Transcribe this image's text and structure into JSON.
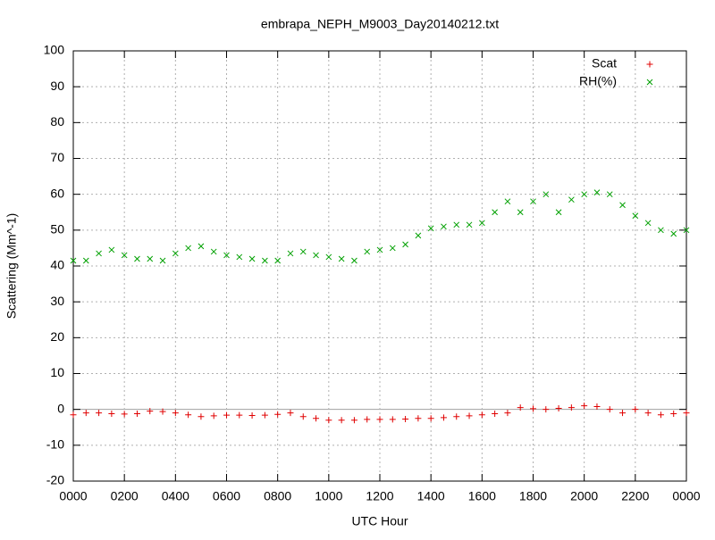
{
  "chart_data": {
    "type": "scatter",
    "title": "embrapa_NEPH_M9003_Day20140212.txt",
    "xlabel": "UTC Hour",
    "ylabel": "Scattering (Mm^-1)",
    "xlim": [
      0,
      24
    ],
    "ylim": [
      -20,
      100
    ],
    "xticks": [
      {
        "value": 0,
        "label": "0000"
      },
      {
        "value": 2,
        "label": "0200"
      },
      {
        "value": 4,
        "label": "0400"
      },
      {
        "value": 6,
        "label": "0600"
      },
      {
        "value": 8,
        "label": "0800"
      },
      {
        "value": 10,
        "label": "1000"
      },
      {
        "value": 12,
        "label": "1200"
      },
      {
        "value": 14,
        "label": "1400"
      },
      {
        "value": 16,
        "label": "1600"
      },
      {
        "value": 18,
        "label": "1800"
      },
      {
        "value": 20,
        "label": "2000"
      },
      {
        "value": 22,
        "label": "2200"
      },
      {
        "value": 24,
        "label": "0000"
      }
    ],
    "yticks": [
      -20,
      -10,
      0,
      10,
      20,
      30,
      40,
      50,
      60,
      70,
      80,
      90,
      100
    ],
    "grid": true,
    "legend": "upper right",
    "x": [
      0,
      0.5,
      1,
      1.5,
      2,
      2.5,
      3,
      3.5,
      4,
      4.5,
      5,
      5.5,
      6,
      6.5,
      7,
      7.5,
      8,
      8.5,
      9,
      9.5,
      10,
      10.5,
      11,
      11.5,
      12,
      12.5,
      13,
      13.5,
      14,
      14.5,
      15,
      15.5,
      16,
      16.5,
      17,
      17.5,
      18,
      18.5,
      19,
      19.5,
      20,
      20.5,
      21,
      21.5,
      22,
      22.5,
      23,
      23.5,
      24
    ],
    "series": [
      {
        "name": "Scat",
        "color": "#e00000",
        "marker": "plus",
        "values": [
          -1.5,
          -1,
          -1,
          -1.2,
          -1.3,
          -1.2,
          -0.5,
          -0.6,
          -1,
          -1.5,
          -2,
          -1.8,
          -1.6,
          -1.6,
          -1.7,
          -1.6,
          -1.4,
          -1,
          -2,
          -2.5,
          -3,
          -3,
          -3,
          -2.8,
          -2.8,
          -2.8,
          -2.7,
          -2.5,
          -2.5,
          -2.3,
          -2,
          -1.8,
          -1.5,
          -1.2,
          -1,
          0.5,
          0.2,
          0,
          0.3,
          0.5,
          1,
          0.8,
          0,
          -1,
          0,
          -1,
          -1.5,
          -1.2,
          -1
        ]
      },
      {
        "name": "RH(%)",
        "color": "#00a000",
        "marker": "cross",
        "values": [
          41.5,
          41.5,
          43.5,
          44.5,
          43,
          42,
          42,
          41.5,
          43.5,
          45,
          45.5,
          44,
          43,
          42.5,
          42,
          41.5,
          41.5,
          43.5,
          44,
          43,
          42.5,
          42,
          41.5,
          44,
          44.5,
          45,
          46,
          48.5,
          50.5,
          51,
          51.5,
          51.5,
          52,
          55,
          58,
          55,
          58,
          60,
          55,
          58.5,
          60,
          60.5,
          60,
          57,
          54,
          52,
          50,
          49,
          50
        ]
      }
    ]
  }
}
